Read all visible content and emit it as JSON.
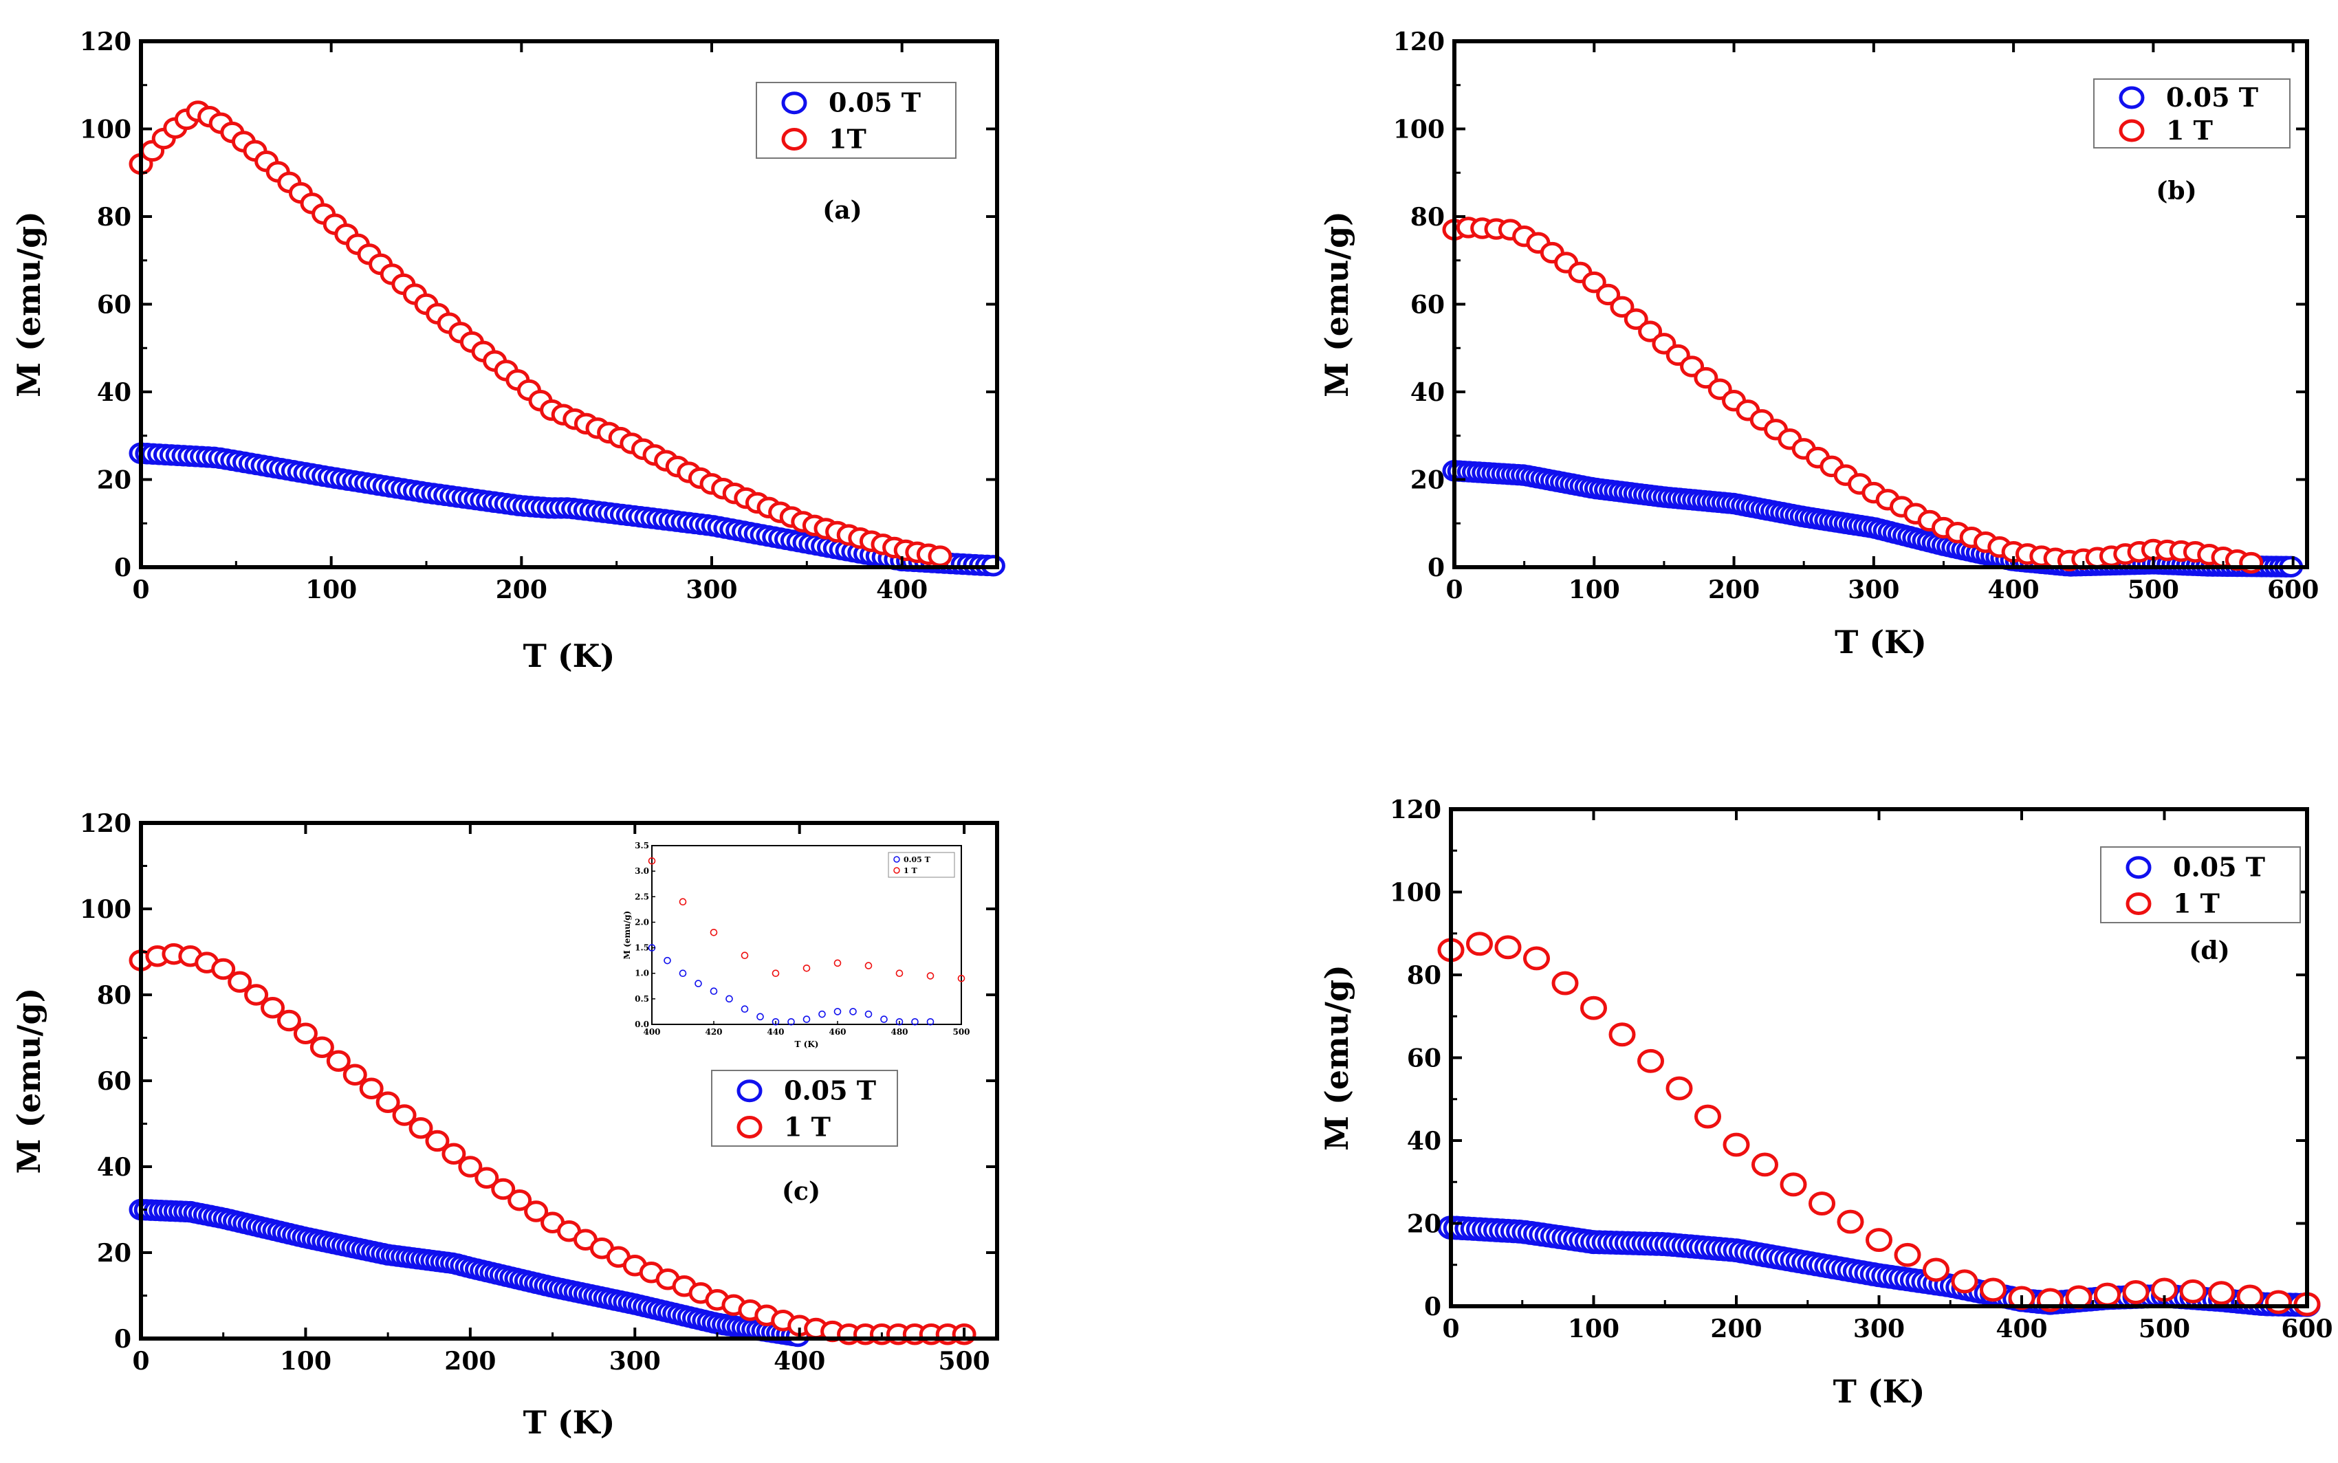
{
  "chart_data": [
    {
      "panel": "(a)",
      "type": "scatter",
      "xlabel": "T (K)",
      "ylabel": "M (emu/g)",
      "xlim": [
        0,
        450
      ],
      "ylim": [
        0,
        120
      ],
      "xticks": [
        0,
        100,
        200,
        300,
        400
      ],
      "yticks": [
        0,
        20,
        40,
        60,
        80,
        100,
        120
      ],
      "legend": [
        {
          "label": "0.05 T",
          "color": "#1010ee"
        },
        {
          "label": "1T",
          "color": "#ee1010"
        }
      ],
      "series": [
        {
          "name": "0.05 T",
          "color": "#1010ee",
          "x": [
            0,
            40,
            100,
            150,
            200,
            215,
            225,
            300,
            350,
            400,
            420,
            440,
            450
          ],
          "y": [
            26,
            25,
            20.5,
            17,
            14,
            13.5,
            13.5,
            9.5,
            5.5,
            1.5,
            1,
            0.5,
            0.3
          ],
          "step": 3.2
        },
        {
          "name": "1T",
          "color": "#ee1010",
          "x": [
            0,
            10,
            20,
            30,
            40,
            60,
            80,
            100,
            150,
            200,
            215,
            250,
            300,
            350,
            400,
            420
          ],
          "y": [
            92,
            97,
            101,
            104,
            102,
            95,
            87,
            79,
            60,
            42,
            36,
            30,
            19,
            10,
            4,
            2.5
          ],
          "step": 6
        }
      ]
    },
    {
      "panel": "(b)",
      "type": "scatter",
      "xlabel": "T (K)",
      "ylabel": "M (emu/g)",
      "xlim": [
        0,
        610
      ],
      "ylim": [
        0,
        120
      ],
      "xticks": [
        0,
        100,
        200,
        300,
        400,
        500,
        600
      ],
      "yticks": [
        0,
        20,
        40,
        60,
        80,
        100,
        120
      ],
      "legend": [
        {
          "label": "0.05 T",
          "color": "#1010ee"
        },
        {
          "label": "1 T",
          "color": "#ee1010"
        }
      ],
      "series": [
        {
          "name": "0.05 T",
          "color": "#1010ee",
          "x": [
            0,
            50,
            100,
            150,
            200,
            250,
            300,
            350,
            400,
            440,
            500,
            540,
            570,
            600
          ],
          "y": [
            22,
            21,
            18,
            16,
            14.5,
            11.5,
            9,
            5,
            1.5,
            0.3,
            0.8,
            0.3,
            0.2,
            0.1
          ],
          "step": 3.5
        },
        {
          "name": "1 T",
          "color": "#ee1010",
          "x": [
            0,
            10,
            40,
            60,
            100,
            150,
            200,
            250,
            300,
            350,
            400,
            440,
            470,
            500,
            530,
            570
          ],
          "y": [
            77,
            77.5,
            77,
            74,
            65,
            51,
            38,
            27,
            17,
            9,
            3.5,
            1.5,
            2.5,
            4,
            3.5,
            1
          ],
          "step": 10
        }
      ]
    },
    {
      "panel": "(c)",
      "type": "scatter",
      "xlabel": "T (K)",
      "ylabel": "M (emu/g)",
      "xlim": [
        0,
        520
      ],
      "ylim": [
        0,
        120
      ],
      "xticks": [
        0,
        100,
        200,
        300,
        400,
        500
      ],
      "yticks": [
        0,
        20,
        40,
        60,
        80,
        100,
        120
      ],
      "legend": [
        {
          "label": "0.05 T",
          "color": "#1010ee"
        },
        {
          "label": "1 T",
          "color": "#ee1010"
        }
      ],
      "series": [
        {
          "name": "0.05 T",
          "color": "#1010ee",
          "x": [
            0,
            30,
            50,
            100,
            150,
            190,
            200,
            250,
            300,
            350,
            400
          ],
          "y": [
            30,
            29.5,
            28,
            23.5,
            19.5,
            17.5,
            16.5,
            12,
            8,
            3.5,
            0.5
          ],
          "step": 3
        },
        {
          "name": "1 T",
          "color": "#ee1010",
          "x": [
            0,
            10,
            20,
            30,
            50,
            100,
            150,
            200,
            250,
            300,
            350,
            400,
            430,
            460,
            500
          ],
          "y": [
            88,
            89,
            89.5,
            89,
            86,
            71,
            55,
            40,
            27,
            17,
            9,
            3,
            1,
            1,
            1
          ],
          "step": 10
        },
        {
          "name": "inset 0.05 T",
          "color": "#1010ee",
          "x": [
            400,
            405,
            410,
            415,
            420,
            425,
            430,
            435,
            440,
            445,
            450,
            455,
            460,
            465,
            470,
            475,
            480,
            485,
            490
          ],
          "y": [
            1.5,
            1.25,
            1.0,
            0.8,
            0.65,
            0.5,
            0.3,
            0.15,
            0.05,
            0.05,
            0.1,
            0.2,
            0.25,
            0.25,
            0.2,
            0.1,
            0.05,
            0.05,
            0.05
          ],
          "step": 0
        },
        {
          "name": "inset 1 T",
          "color": "#ee1010",
          "x": [
            400,
            410,
            420,
            430,
            440,
            450,
            460,
            470,
            480,
            490,
            500
          ],
          "y": [
            3.2,
            2.4,
            1.8,
            1.35,
            1.0,
            1.1,
            1.2,
            1.15,
            1.0,
            0.95,
            0.9
          ],
          "step": 0
        }
      ],
      "inset": {
        "xlabel": "T (K)",
        "ylabel": "M (emu/g)",
        "xlim": [
          400,
          500
        ],
        "ylim": [
          0,
          3.5
        ],
        "xticks": [
          "400",
          "420",
          "440",
          "460",
          "480",
          "500"
        ],
        "yticks": [
          "0.0",
          "0.5",
          "1.0",
          "1.5",
          "2.0",
          "2.5",
          "3.0",
          "3.5"
        ],
        "legend": [
          "0.05 T",
          "1 T"
        ]
      }
    },
    {
      "panel": "(d)",
      "type": "scatter",
      "xlabel": "T (K)",
      "ylabel": "M (emu/g)",
      "xlim": [
        0,
        600
      ],
      "ylim": [
        0,
        120
      ],
      "xticks": [
        0,
        100,
        200,
        300,
        400,
        500,
        600
      ],
      "yticks": [
        0,
        20,
        40,
        60,
        80,
        100,
        120
      ],
      "legend": [
        {
          "label": "0.05 T",
          "color": "#1010ee"
        },
        {
          "label": "1 T",
          "color": "#ee1010"
        }
      ],
      "series": [
        {
          "name": "0.05 T",
          "color": "#1010ee",
          "x": [
            0,
            50,
            100,
            150,
            200,
            250,
            300,
            350,
            400,
            420,
            460,
            500,
            540,
            570,
            600
          ],
          "y": [
            19,
            18,
            15.5,
            15,
            13.5,
            10.5,
            7.5,
            5,
            1.5,
            0.8,
            2,
            2.5,
            1.5,
            0.5,
            0.3
          ],
          "step": 4
        },
        {
          "name": "1 T",
          "color": "#ee1010",
          "x": [
            0,
            10,
            30,
            60,
            100,
            150,
            200,
            250,
            300,
            350,
            400,
            420,
            450,
            500,
            550,
            580,
            600
          ],
          "y": [
            86,
            87,
            88,
            84,
            72,
            56,
            39,
            27,
            16,
            7,
            2,
            1.5,
            2.5,
            4,
            3,
            1,
            0.5
          ],
          "step": 20
        }
      ]
    }
  ]
}
